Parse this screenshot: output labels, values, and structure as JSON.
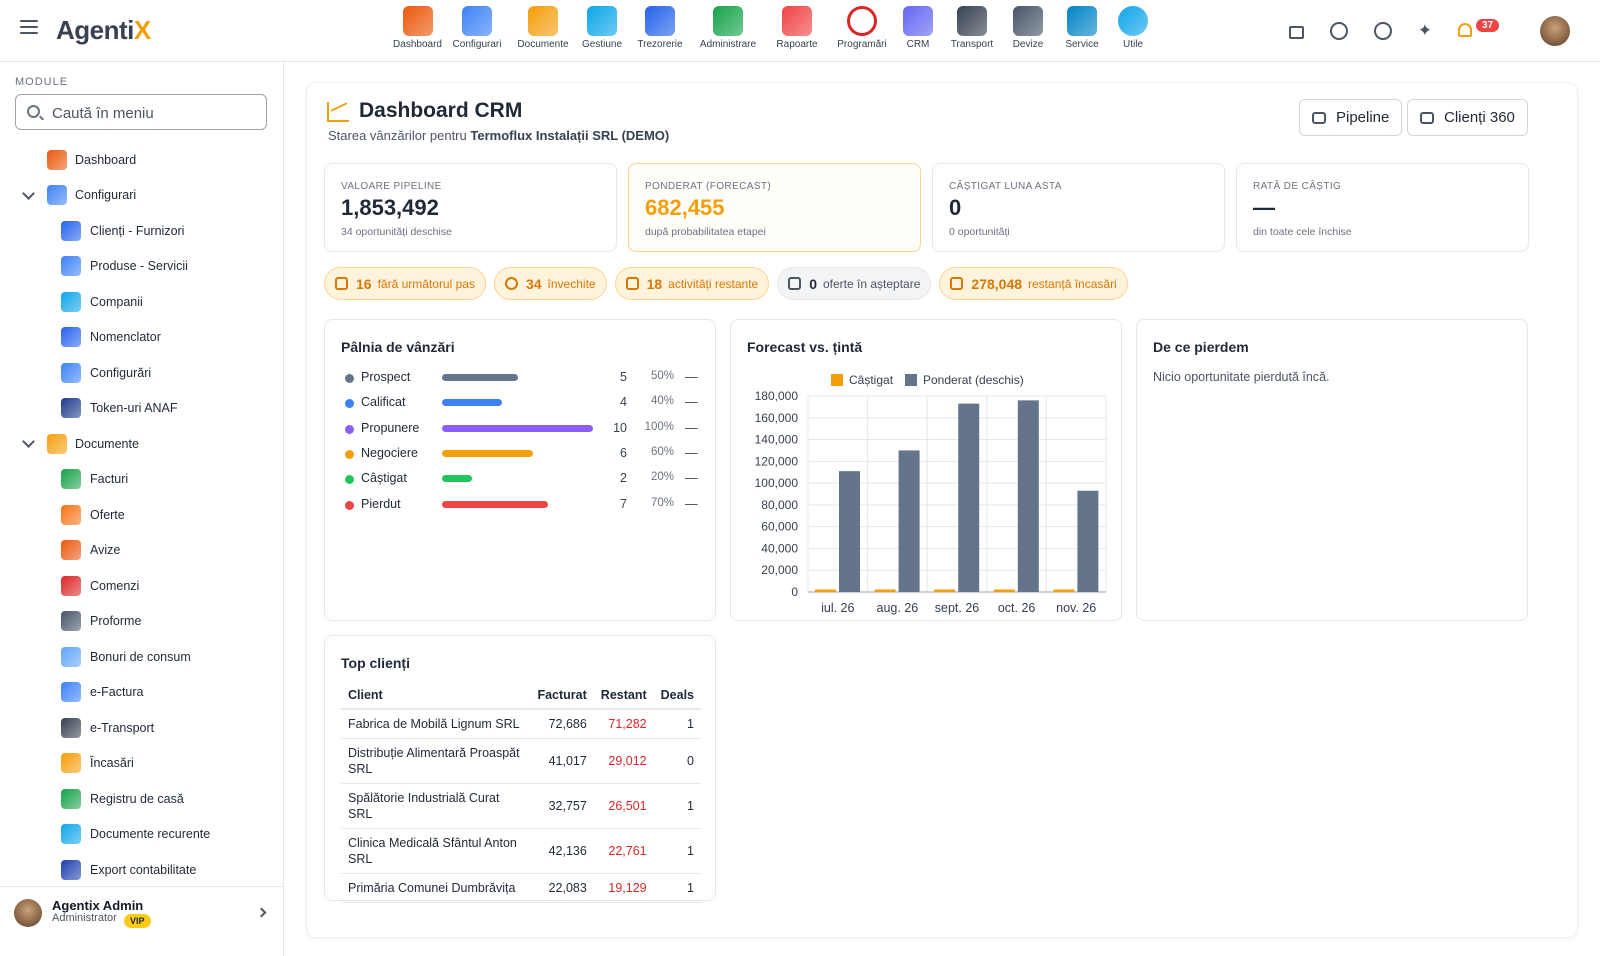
{
  "app": {
    "logo_main": "Agenti",
    "logo_accent": "X"
  },
  "modules": [
    {
      "label": "Dashboard",
      "icon": "dashboard-chart-icon",
      "color": "#ea580c"
    },
    {
      "label": "Configurari",
      "icon": "wrench-icon",
      "color": "#3b82f6"
    },
    {
      "label": "Documente",
      "icon": "documents-folder-icon",
      "color": "#f59e0b"
    },
    {
      "label": "Gestiune",
      "icon": "warehouse-icon",
      "color": "#0ea5e9"
    },
    {
      "label": "Trezorerie",
      "icon": "bank-icon",
      "color": "#2563eb"
    },
    {
      "label": "Administrare",
      "icon": "shield-check-icon",
      "color": "#16a34a"
    },
    {
      "label": "Rapoarte",
      "icon": "pie-report-icon",
      "color": "#ef4444"
    },
    {
      "label": "Programări",
      "icon": "clock-icon",
      "color": "#dc2626"
    },
    {
      "label": "CRM",
      "icon": "crm-cycle-icon",
      "color": "#6366f1"
    },
    {
      "label": "Transport",
      "icon": "truck-icon",
      "color": "#374151"
    },
    {
      "label": "Devize",
      "icon": "estimate-sheet-icon",
      "color": "#475569"
    },
    {
      "label": "Service",
      "icon": "car-service-icon",
      "color": "#0284c7"
    },
    {
      "label": "Utile",
      "icon": "help-circle-icon",
      "color": "#0ea5e9"
    }
  ],
  "topbar": {
    "notifications": "37"
  },
  "sidebar": {
    "section_label": "MODULE",
    "search_placeholder": "Caută în meniu",
    "items": [
      {
        "label": "Dashboard",
        "level": 0,
        "expand": false,
        "icon": "dashboard-chart-icon",
        "color": "#ea580c"
      },
      {
        "label": "Configurari",
        "level": 0,
        "expand": true,
        "icon": "wrench-icon",
        "color": "#3b82f6"
      },
      {
        "label": "Clienți - Furnizori",
        "level": 1,
        "icon": "people-icon",
        "color": "#2563eb"
      },
      {
        "label": "Produse - Servicii",
        "level": 1,
        "icon": "list-sheet-icon",
        "color": "#3b82f6"
      },
      {
        "label": "Companii",
        "level": 1,
        "icon": "building-icon",
        "color": "#0ea5e9"
      },
      {
        "label": "Nomenclator",
        "level": 1,
        "icon": "list-icon",
        "color": "#2563eb"
      },
      {
        "label": "Configurări",
        "level": 1,
        "icon": "settings-list-icon",
        "color": "#3b82f6"
      },
      {
        "label": "Token-uri ANAF",
        "level": 1,
        "icon": "shield-lock-icon",
        "color": "#1e3a8a"
      },
      {
        "label": "Documente",
        "level": 0,
        "expand": true,
        "icon": "documents-folder-icon",
        "color": "#f59e0b"
      },
      {
        "label": "Facturi",
        "level": 1,
        "icon": "invoice-icon",
        "color": "#16a34a"
      },
      {
        "label": "Oferte",
        "level": 1,
        "icon": "offer-icon",
        "color": "#f97316"
      },
      {
        "label": "Avize",
        "level": 1,
        "icon": "delivery-truck-icon",
        "color": "#ea580c"
      },
      {
        "label": "Comenzi",
        "level": 1,
        "icon": "cart-icon",
        "color": "#dc2626"
      },
      {
        "label": "Proforme",
        "level": 1,
        "icon": "proforma-icon",
        "color": "#475569"
      },
      {
        "label": "Bonuri de consum",
        "level": 1,
        "icon": "receipt-icon",
        "color": "#60a5fa"
      },
      {
        "label": "e-Factura",
        "level": 1,
        "icon": "cloud-icon",
        "color": "#3b82f6"
      },
      {
        "label": "e-Transport",
        "level": 1,
        "icon": "transport-icon",
        "color": "#374151"
      },
      {
        "label": "Încasări",
        "level": 1,
        "icon": "growth-chart-icon",
        "color": "#f59e0b"
      },
      {
        "label": "Registru de casă",
        "level": 1,
        "icon": "cash-register-icon",
        "color": "#16a34a"
      },
      {
        "label": "Documente recurente",
        "level": 1,
        "icon": "recurring-icon",
        "color": "#0ea5e9"
      },
      {
        "label": "Export contabilitate",
        "level": 1,
        "icon": "export-icon",
        "color": "#1e40af"
      }
    ],
    "user": {
      "name": "Agentix Admin",
      "role": "Administrator",
      "badge": "VIP"
    }
  },
  "page": {
    "title": "Dashboard CRM",
    "subtitle_prefix": "Starea vânzărilor pentru",
    "company": "Termoflux Instalații SRL (DEMO)",
    "btn_pipeline": "Pipeline",
    "btn_clients": "Clienți 360"
  },
  "kpis": [
    {
      "label": "VALOARE PIPELINE",
      "value": "1,853,492",
      "sub": "34 oportunități deschise",
      "highlight": false
    },
    {
      "label": "PONDERAT (FORECAST)",
      "value": "682,455",
      "sub": "după probabilitatea etapei",
      "highlight": true
    },
    {
      "label": "CÂȘTIGAT LUNA ASTA",
      "value": "0",
      "sub": "0 oportunități",
      "highlight": false
    },
    {
      "label": "RATĂ DE CÂȘTIG",
      "value": "—",
      "sub": "din toate cele închise",
      "highlight": false
    }
  ],
  "chips": [
    {
      "count": "16",
      "text": "fără următorul pas",
      "style": "warn",
      "icon": "flag-icon"
    },
    {
      "count": "34",
      "text": "învechite",
      "style": "warn",
      "icon": "clock-icon"
    },
    {
      "count": "18",
      "text": "activități restante",
      "style": "warn",
      "icon": "warning-icon"
    },
    {
      "count": "0",
      "text": "oferte în așteptare",
      "style": "gray",
      "icon": "mail-icon"
    },
    {
      "count": "278,048",
      "text": "restanță încasări",
      "style": "warn",
      "icon": "wallet-icon"
    }
  ],
  "funnel": {
    "title": "Pâlnia de vânzări",
    "rows": [
      {
        "stage": "Prospect",
        "count": "5",
        "pct": "50%",
        "value": "—",
        "color": "#64748b",
        "fill": 0.5
      },
      {
        "stage": "Calificat",
        "count": "4",
        "pct": "40%",
        "value": "—",
        "color": "#3b82f6",
        "fill": 0.4
      },
      {
        "stage": "Propunere",
        "count": "10",
        "pct": "100%",
        "value": "—",
        "color": "#8b5cf6",
        "fill": 1.0
      },
      {
        "stage": "Negociere",
        "count": "6",
        "pct": "60%",
        "value": "—",
        "color": "#f59e0b",
        "fill": 0.6
      },
      {
        "stage": "Câștigat",
        "count": "2",
        "pct": "20%",
        "value": "—",
        "color": "#22c55e",
        "fill": 0.2
      },
      {
        "stage": "Pierdut",
        "count": "7",
        "pct": "70%",
        "value": "—",
        "color": "#ef4444",
        "fill": 0.7
      }
    ]
  },
  "chart_data": {
    "type": "bar",
    "title": "Forecast vs. țintă",
    "categories": [
      "iul. 26",
      "aug. 26",
      "sept. 26",
      "oct. 26",
      "nov. 26"
    ],
    "series": [
      {
        "name": "Câștigat",
        "color": "#f59e0b",
        "values": [
          0,
          0,
          0,
          0,
          0
        ]
      },
      {
        "name": "Ponderat (deschis)",
        "color": "#64748b",
        "values": [
          111000,
          130000,
          173000,
          176000,
          93000
        ]
      }
    ],
    "ylim": [
      0,
      180000
    ],
    "yticks": [
      "0",
      "20,000",
      "40,000",
      "60,000",
      "80,000",
      "100,000",
      "120,000",
      "140,000",
      "160,000",
      "180,000"
    ],
    "grid": true,
    "legend": "top"
  },
  "loss": {
    "title": "De ce pierdem",
    "empty": "Nicio oportunitate pierdută încă."
  },
  "top_clients": {
    "title": "Top clienți",
    "headers": [
      "Client",
      "Facturat",
      "Restant",
      "Deals"
    ],
    "rows": [
      {
        "client": "Fabrica de Mobilă Lignum SRL",
        "facturat": "72,686",
        "restant": "71,282",
        "deals": "1"
      },
      {
        "client": "Distribuție Alimentară Proaspăt SRL",
        "facturat": "41,017",
        "restant": "29,012",
        "deals": "0"
      },
      {
        "client": "Spălătorie Industrială Curat SRL",
        "facturat": "32,757",
        "restant": "26,501",
        "deals": "1"
      },
      {
        "client": "Clinica Medicală Sfântul Anton SRL",
        "facturat": "42,136",
        "restant": "22,761",
        "deals": "1"
      },
      {
        "client": "Primăria Comunei Dumbrăvița",
        "facturat": "22,083",
        "restant": "19,129",
        "deals": "1"
      }
    ]
  }
}
